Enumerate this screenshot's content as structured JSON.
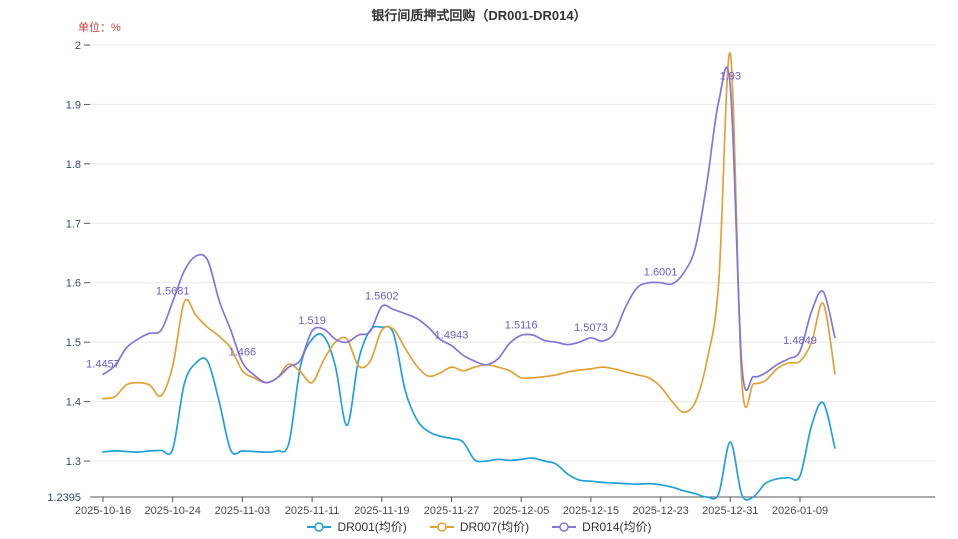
{
  "chart_data": {
    "type": "line",
    "title": "银行间质押式回购（DR001-DR014）",
    "unit_label": "单位：%",
    "x": [
      "2025-10-16",
      "2025-10-17",
      "2025-10-20",
      "2025-10-21",
      "2025-10-22",
      "2025-10-23",
      "2025-10-24",
      "2025-10-27",
      "2025-10-28",
      "2025-10-29",
      "2025-10-30",
      "2025-10-31",
      "2025-11-03",
      "2025-11-04",
      "2025-11-05",
      "2025-11-06",
      "2025-11-07",
      "2025-11-10",
      "2025-11-11",
      "2025-11-12",
      "2025-11-13",
      "2025-11-14",
      "2025-11-17",
      "2025-11-18",
      "2025-11-19",
      "2025-11-20",
      "2025-11-21",
      "2025-11-24",
      "2025-11-25",
      "2025-11-26",
      "2025-11-27",
      "2025-11-28",
      "2025-12-01",
      "2025-12-02",
      "2025-12-03",
      "2025-12-04",
      "2025-12-05",
      "2025-12-08",
      "2025-12-09",
      "2025-12-10",
      "2025-12-11",
      "2025-12-12",
      "2025-12-15",
      "2025-12-16",
      "2025-12-17",
      "2025-12-18",
      "2025-12-19",
      "2025-12-22",
      "2025-12-23",
      "2025-12-24",
      "2025-12-25",
      "2025-12-26",
      "2025-12-29",
      "2025-12-30",
      "2025-12-31",
      "2026-01-02",
      "2026-01-05",
      "2026-01-06",
      "2026-01-07",
      "2026-01-08",
      "2026-01-09",
      "2026-01-12",
      "2026-01-13",
      "2026-01-14"
    ],
    "x_tick_indices": [
      0,
      6,
      12,
      18,
      24,
      30,
      36,
      42,
      48,
      54,
      60
    ],
    "x_tick_labels": [
      "2025-10-16",
      "2025-10-24",
      "2025-11-03",
      "2025-11-11",
      "2025-11-19",
      "2025-11-27",
      "2025-12-05",
      "2025-12-15",
      "2025-12-23",
      "2025-12-31",
      "2026-01-09"
    ],
    "series": [
      {
        "name": "DR001(均价)",
        "color": "#21A0DB",
        "values": [
          1.315,
          1.317,
          1.316,
          1.315,
          1.317,
          1.318,
          1.32,
          1.43,
          1.465,
          1.468,
          1.4,
          1.318,
          1.317,
          1.316,
          1.315,
          1.317,
          1.33,
          1.46,
          1.505,
          1.51,
          1.46,
          1.36,
          1.47,
          1.52,
          1.525,
          1.515,
          1.42,
          1.37,
          1.35,
          1.342,
          1.338,
          1.332,
          1.302,
          1.3,
          1.303,
          1.301,
          1.303,
          1.305,
          1.3,
          1.295,
          1.278,
          1.268,
          1.266,
          1.264,
          1.263,
          1.262,
          1.261,
          1.262,
          1.26,
          1.256,
          1.25,
          1.245,
          1.2395,
          1.245,
          1.332,
          1.243,
          1.24,
          1.262,
          1.27,
          1.272,
          1.275,
          1.36,
          1.398,
          1.322
        ]
      },
      {
        "name": "DR007(均价)",
        "color": "#E0A237",
        "values": [
          1.405,
          1.408,
          1.428,
          1.432,
          1.428,
          1.41,
          1.46,
          1.568,
          1.545,
          1.525,
          1.51,
          1.49,
          1.452,
          1.44,
          1.432,
          1.44,
          1.463,
          1.45,
          1.432,
          1.47,
          1.5,
          1.505,
          1.46,
          1.468,
          1.52,
          1.522,
          1.49,
          1.46,
          1.443,
          1.448,
          1.458,
          1.452,
          1.458,
          1.462,
          1.458,
          1.452,
          1.44,
          1.44,
          1.442,
          1.445,
          1.45,
          1.453,
          1.455,
          1.458,
          1.455,
          1.45,
          1.445,
          1.44,
          1.425,
          1.4,
          1.382,
          1.4,
          1.47,
          1.6,
          1.985,
          1.432,
          1.43,
          1.435,
          1.455,
          1.465,
          1.468,
          1.5,
          1.565,
          1.447
        ]
      },
      {
        "name": "DR014(均价)",
        "color": "#8574D9",
        "values": [
          1.4457,
          1.46,
          1.49,
          1.505,
          1.515,
          1.52,
          1.5681,
          1.62,
          1.645,
          1.638,
          1.57,
          1.52,
          1.466,
          1.445,
          1.432,
          1.44,
          1.458,
          1.47,
          1.519,
          1.522,
          1.505,
          1.5,
          1.512,
          1.518,
          1.5602,
          1.555,
          1.548,
          1.54,
          1.525,
          1.505,
          1.4943,
          1.478,
          1.468,
          1.462,
          1.472,
          1.498,
          1.5116,
          1.512,
          1.503,
          1.5,
          1.496,
          1.5,
          1.5073,
          1.502,
          1.515,
          1.56,
          1.592,
          1.6,
          1.6001,
          1.598,
          1.617,
          1.66,
          1.77,
          1.905,
          1.93,
          1.46,
          1.442,
          1.448,
          1.462,
          1.472,
          1.4849,
          1.552,
          1.585,
          1.508
        ]
      }
    ],
    "annotations": {
      "series": "DR014(均价)",
      "points": [
        {
          "index": 0,
          "label": "1.4457"
        },
        {
          "index": 6,
          "label": "1.5681"
        },
        {
          "index": 12,
          "label": "1.466"
        },
        {
          "index": 18,
          "label": "1.519"
        },
        {
          "index": 24,
          "label": "1.5602"
        },
        {
          "index": 30,
          "label": "1.4943"
        },
        {
          "index": 36,
          "label": "1.5116"
        },
        {
          "index": 42,
          "label": "1.5073"
        },
        {
          "index": 48,
          "label": "1.6001"
        },
        {
          "index": 54,
          "label": "1.93"
        },
        {
          "index": 60,
          "label": "1.4849"
        }
      ]
    },
    "y_axis": {
      "min": 1.2395,
      "max": 2,
      "ticks": [
        2,
        1.9,
        1.8,
        1.7,
        1.6,
        1.5,
        1.4,
        1.3
      ],
      "min_label": "1.2395"
    },
    "legend": {
      "position": "bottom",
      "items": [
        "DR001(均价)",
        "DR007(均价)",
        "DR014(均价)"
      ]
    },
    "grid": true,
    "colors": {
      "grid": "#E8E8E8",
      "axis": "#555555",
      "x_label": "#4A4A4A",
      "y_label": "#2E4E79",
      "title": "#333333",
      "unit": "#C43C3C",
      "annotation": "#6D5EC8",
      "background": "#FFFFFF"
    }
  }
}
